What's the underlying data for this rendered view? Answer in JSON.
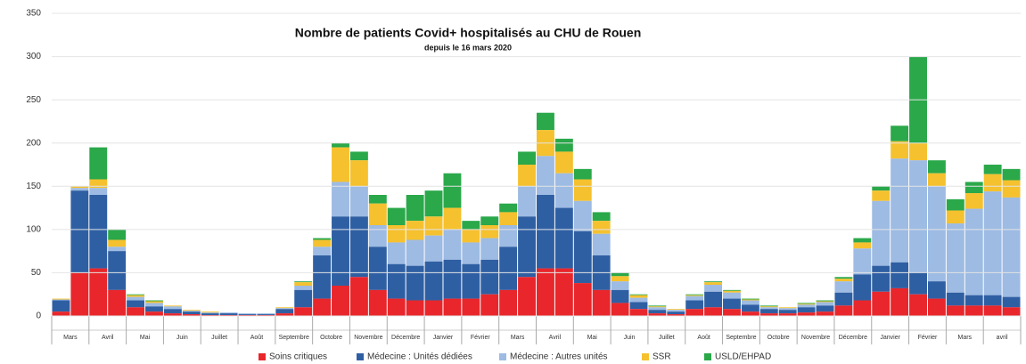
{
  "chart_data": {
    "type": "bar",
    "stacked": true,
    "title": "Nombre de patients Covid+ hospitalisés au CHU de Rouen",
    "subtitle": "depuis le 16 mars 2020",
    "categories": [
      "Mars",
      null,
      "Avril",
      null,
      "Mai",
      null,
      "Juin",
      null,
      "Juillet",
      null,
      "Août",
      null,
      "Septembre",
      null,
      "Octobre",
      null,
      "Novembre",
      null,
      "Décembre",
      null,
      "Janvier",
      null,
      "Février",
      null,
      "Mars",
      null,
      "Avril",
      null,
      "Mai",
      null,
      "Juin",
      null,
      "Juillet",
      null,
      "Août",
      null,
      "Septembre",
      null,
      "Octobre",
      null,
      "Novembre",
      null,
      "Décembre",
      null,
      "Janvier",
      null,
      "Février",
      null,
      "Mars",
      null,
      "avril",
      null
    ],
    "series": [
      {
        "name": "Soins critiques",
        "color": "#e8262b",
        "values": [
          5,
          50,
          55,
          30,
          10,
          5,
          3,
          2,
          1,
          1,
          1,
          1,
          3,
          10,
          20,
          35,
          45,
          30,
          20,
          18,
          18,
          20,
          20,
          25,
          30,
          45,
          55,
          55,
          38,
          30,
          15,
          8,
          3,
          2,
          8,
          10,
          8,
          5,
          3,
          3,
          4,
          5,
          12,
          18,
          28,
          32,
          25,
          20,
          12,
          12,
          12,
          10
        ]
      },
      {
        "name": "Médecine : Unités dédiées",
        "color": "#2f5fa3",
        "values": [
          13,
          95,
          85,
          45,
          8,
          6,
          5,
          3,
          2,
          2,
          1,
          1,
          5,
          20,
          50,
          80,
          70,
          50,
          40,
          40,
          45,
          45,
          40,
          40,
          50,
          70,
          85,
          70,
          60,
          40,
          15,
          8,
          4,
          3,
          10,
          18,
          12,
          8,
          5,
          4,
          6,
          7,
          15,
          30,
          30,
          30,
          25,
          20,
          15,
          12,
          12,
          12
        ]
      },
      {
        "name": "Médecine : Autres unités",
        "color": "#9dbbe3",
        "values": [
          1,
          3,
          8,
          5,
          4,
          4,
          3,
          1,
          1,
          1,
          1,
          1,
          1,
          5,
          10,
          40,
          35,
          25,
          25,
          30,
          30,
          35,
          25,
          25,
          25,
          35,
          45,
          40,
          35,
          25,
          10,
          5,
          3,
          2,
          5,
          8,
          7,
          5,
          2,
          2,
          3,
          4,
          13,
          30,
          75,
          120,
          130,
          110,
          80,
          100,
          120,
          115
        ]
      },
      {
        "name": "SSR",
        "color": "#f5c12e",
        "values": [
          1,
          2,
          10,
          8,
          2,
          2,
          1,
          1,
          1,
          0,
          0,
          0,
          1,
          4,
          8,
          40,
          30,
          25,
          20,
          22,
          22,
          25,
          15,
          15,
          15,
          25,
          30,
          25,
          25,
          15,
          6,
          3,
          1,
          1,
          1,
          3,
          2,
          1,
          1,
          1,
          1,
          1,
          3,
          7,
          12,
          20,
          20,
          15,
          15,
          18,
          20,
          20
        ]
      },
      {
        "name": "USLD/EHPAD",
        "color": "#2aa84a",
        "values": [
          0,
          0,
          37,
          12,
          1,
          1,
          0,
          0,
          0,
          0,
          0,
          0,
          0,
          1,
          2,
          5,
          10,
          10,
          20,
          30,
          30,
          40,
          10,
          10,
          10,
          15,
          20,
          15,
          12,
          10,
          4,
          1,
          1,
          0,
          1,
          1,
          1,
          1,
          1,
          0,
          1,
          1,
          2,
          5,
          5,
          18,
          100,
          15,
          13,
          13,
          11,
          13
        ]
      }
    ],
    "ylim": [
      0,
      350
    ],
    "yticks": [
      0,
      50,
      100,
      150,
      200,
      250,
      300,
      350
    ],
    "grid": true,
    "legend": "bottom"
  }
}
